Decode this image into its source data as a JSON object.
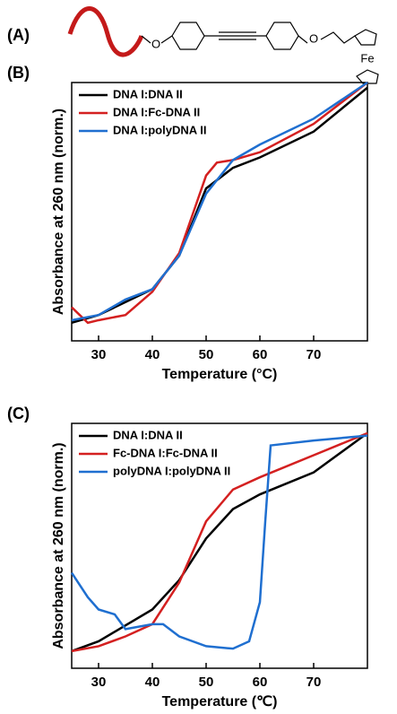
{
  "panel_a": {
    "label": "(A)",
    "atoms": [
      "O",
      "O",
      "Fe"
    ]
  },
  "chart_data": [
    {
      "type": "line",
      "panel_label": "(B)",
      "xlabel": "Temperature (°C)",
      "ylabel": "Absorbance at 260 nm (norm.)",
      "xlim": [
        25,
        80
      ],
      "ylim": [
        0,
        1
      ],
      "xticks": [
        30,
        40,
        50,
        60,
        70
      ],
      "series": [
        {
          "name": "DNA I:DNA II",
          "color": "#000000",
          "x": [
            25,
            30,
            40,
            45,
            50,
            55,
            60,
            70,
            80
          ],
          "values": [
            0.07,
            0.1,
            0.2,
            0.33,
            0.59,
            0.67,
            0.71,
            0.81,
            0.98
          ]
        },
        {
          "name": "DNA I:Fc-DNA II",
          "color": "#d42020",
          "x": [
            25,
            28,
            30,
            35,
            40,
            45,
            48,
            50,
            52,
            55,
            60,
            70,
            80
          ],
          "values": [
            0.13,
            0.07,
            0.08,
            0.1,
            0.19,
            0.34,
            0.52,
            0.64,
            0.69,
            0.7,
            0.73,
            0.84,
            1.0
          ]
        },
        {
          "name": "DNA I:polyDNA II",
          "color": "#1f6fd0",
          "x": [
            25,
            30,
            35,
            40,
            45,
            50,
            55,
            60,
            70,
            80
          ],
          "values": [
            0.08,
            0.1,
            0.16,
            0.2,
            0.33,
            0.57,
            0.7,
            0.76,
            0.86,
            1.0
          ]
        }
      ]
    },
    {
      "type": "line",
      "panel_label": "(C)",
      "xlabel": "Temperature (℃)",
      "ylabel": "Absorbance at 260 nm (norm.)",
      "xlim": [
        25,
        80
      ],
      "ylim": [
        0,
        1
      ],
      "xticks": [
        30,
        40,
        50,
        60,
        70
      ],
      "series": [
        {
          "name": "DNA I:DNA II",
          "color": "#000000",
          "x": [
            25,
            30,
            40,
            45,
            50,
            55,
            60,
            70,
            80
          ],
          "values": [
            0.07,
            0.11,
            0.24,
            0.36,
            0.53,
            0.65,
            0.71,
            0.8,
            0.96
          ]
        },
        {
          "name": "Fc-DNA I:Fc-DNA II",
          "color": "#d42020",
          "x": [
            25,
            30,
            35,
            40,
            45,
            50,
            55,
            60,
            70,
            80
          ],
          "values": [
            0.07,
            0.09,
            0.13,
            0.18,
            0.35,
            0.6,
            0.73,
            0.78,
            0.87,
            0.96
          ]
        },
        {
          "name": "polyDNA I:polyDNA II",
          "color": "#1f6fd0",
          "x": [
            25,
            28,
            30,
            33,
            35,
            40,
            42,
            45,
            50,
            55,
            58,
            60,
            61,
            62,
            70,
            80
          ],
          "values": [
            0.39,
            0.29,
            0.24,
            0.22,
            0.16,
            0.18,
            0.18,
            0.13,
            0.09,
            0.08,
            0.11,
            0.27,
            0.6,
            0.91,
            0.93,
            0.95
          ]
        }
      ]
    }
  ]
}
